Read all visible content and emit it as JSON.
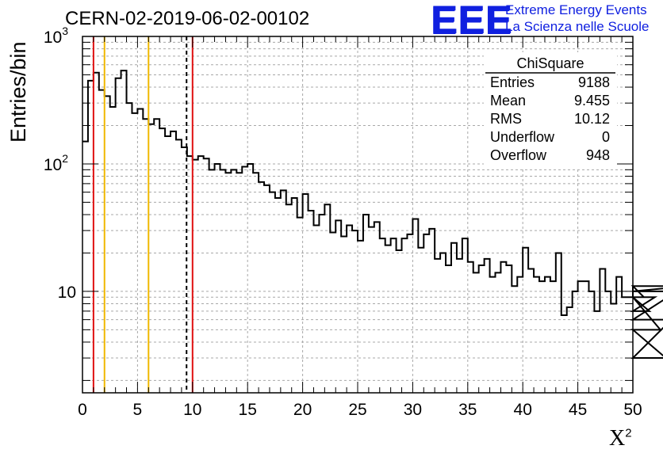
{
  "header": {
    "run_title": "CERN-02-2019-06-02-00102",
    "logo_text": "EEE",
    "logo_line1": "Extreme Energy Events",
    "logo_line2": "La Scienza nelle Scuole",
    "logo_color": "#1020e0"
  },
  "chart_data": {
    "type": "histogram",
    "xlabel": "X",
    "xlabel_sup": "2",
    "ylabel": "Entries/bin",
    "xlim": [
      0,
      50
    ],
    "ylim": [
      1.6,
      1000
    ],
    "yscale": "log",
    "grid": true,
    "bin_width": 0.5,
    "x_ticks": [
      0,
      5,
      10,
      15,
      20,
      25,
      30,
      35,
      40,
      45,
      50
    ],
    "y_ticks": [
      {
        "value": 10,
        "base": "10",
        "exp": ""
      },
      {
        "value": 100,
        "base": "10",
        "exp": "2"
      },
      {
        "value": 1000,
        "base": "10",
        "exp": "3"
      }
    ],
    "values": [
      150,
      450,
      520,
      380,
      340,
      280,
      470,
      540,
      300,
      250,
      270,
      225,
      205,
      225,
      190,
      165,
      180,
      155,
      135,
      115,
      108,
      115,
      110,
      90,
      100,
      90,
      85,
      90,
      85,
      95,
      100,
      85,
      72,
      68,
      60,
      54,
      62,
      48,
      54,
      38,
      58,
      43,
      33,
      40,
      48,
      29,
      36,
      27,
      33,
      30,
      25,
      40,
      32,
      35,
      26,
      23,
      26,
      21,
      26,
      28,
      37,
      22,
      28,
      31,
      18,
      20,
      16,
      24,
      18,
      26,
      17,
      14,
      16,
      18,
      13,
      14,
      17,
      16,
      11,
      13,
      22,
      15,
      13,
      12,
      13,
      12,
      20,
      6.5,
      7.5,
      10,
      12,
      12,
      10,
      7,
      15,
      10,
      8,
      13,
      9,
      9,
      11,
      11,
      9,
      7,
      9,
      5,
      3,
      6,
      10,
      10,
      11
    ],
    "vertical_lines": [
      {
        "x": 1.0,
        "color": "#e01010",
        "style": "solid"
      },
      {
        "x": 2.0,
        "color": "#f0b800",
        "style": "solid"
      },
      {
        "x": 6.0,
        "color": "#f0b800",
        "style": "solid"
      },
      {
        "x": 9.455,
        "color": "#000000",
        "style": "dashed"
      },
      {
        "x": 10.0,
        "color": "#e01010",
        "style": "solid"
      }
    ],
    "stats_box": {
      "title": "ChiSquare",
      "rows": [
        {
          "label": "Entries",
          "value": "9188"
        },
        {
          "label": "Mean",
          "value": "9.455"
        },
        {
          "label": "RMS",
          "value": "10.12"
        },
        {
          "label": "Underflow",
          "value": "0"
        },
        {
          "label": "Overflow",
          "value": "948"
        }
      ]
    }
  }
}
